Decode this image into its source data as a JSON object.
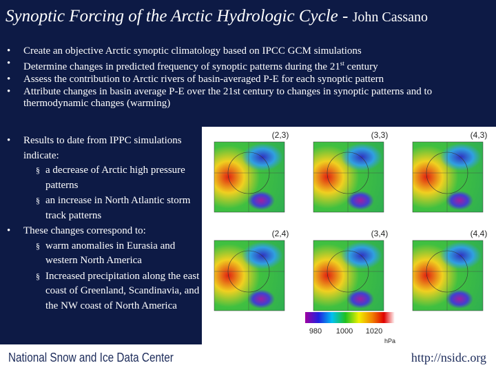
{
  "slide": {
    "title": "Synoptic Forcing of the Arctic Hydrologic Cycle - ",
    "author": "John Cassano",
    "bullets_top": [
      "Create an objective Arctic synoptic climatology based on IPCC GCM simulations",
      [
        "Determine changes in predicted frequency of synoptic patterns during the 21",
        "st",
        " century"
      ],
      "Assess the contribution to Arctic rivers of basin-averaged P-E for each synoptic pattern",
      "Attribute changes in basin average P-E over the 21st century to changes in synoptic patterns and to thermodynamic changes (warming)"
    ],
    "results": {
      "intro": "Results to date from IPPC simulations indicate:",
      "items": [
        "a decrease of Arctic high pressure patterns",
        "an increase in North Atlantic storm track patterns"
      ]
    },
    "changes": {
      "intro": "These changes correspond to:",
      "items": [
        "warm anomalies in Eurasia and western North America",
        "Increased precipitation along the east coast of Greenland, Scandinavia, and the NW coast of North America"
      ]
    },
    "figure": {
      "panels": [
        "(2,3)",
        "(3,3)",
        "(4,3)",
        "(2,4)",
        "(3,4)",
        "(4,4)"
      ],
      "colorbar_ticks": [
        "980",
        "1000",
        "1020"
      ],
      "colorbar_unit": "hPa"
    },
    "footer": {
      "org": "National Snow and Ice Data Center",
      "url": "http://nsidc.org"
    }
  }
}
